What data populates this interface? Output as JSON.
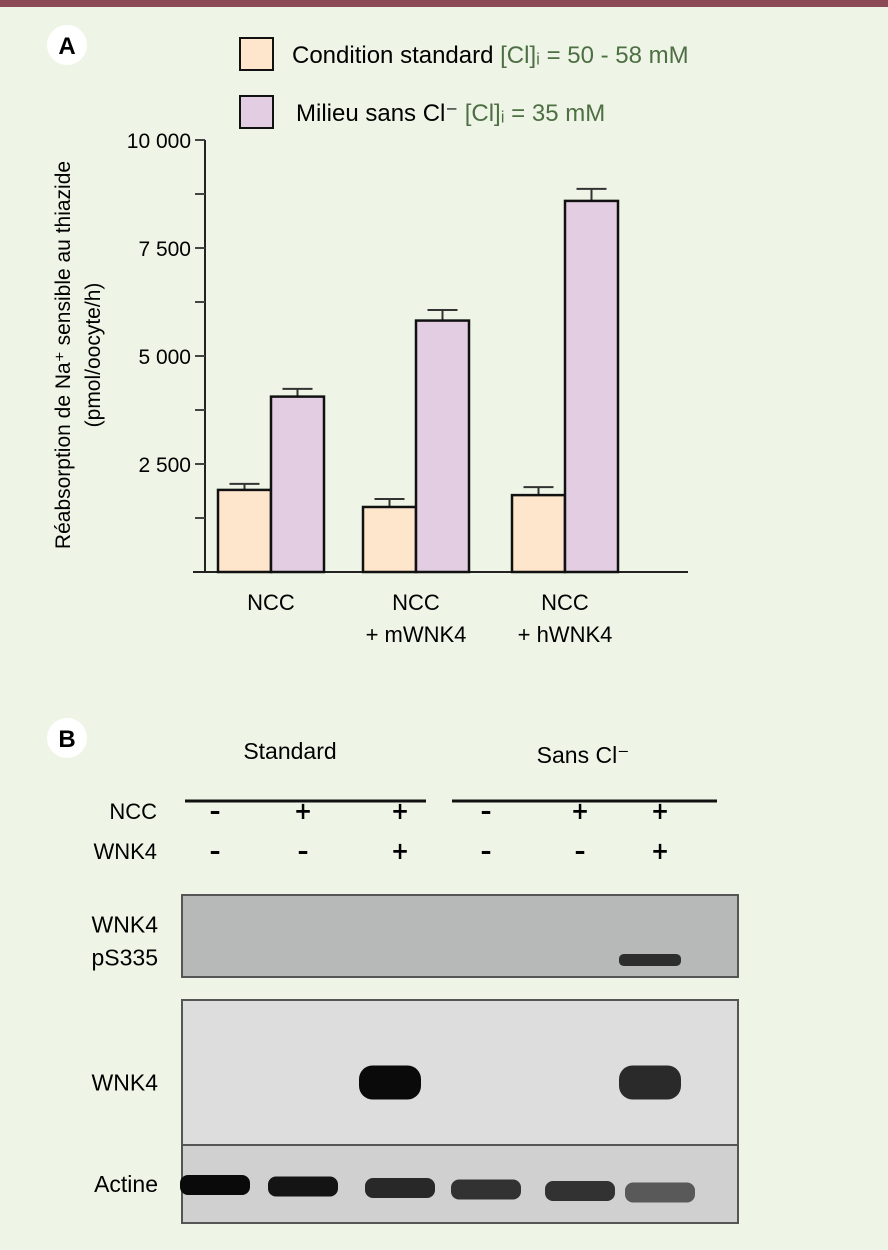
{
  "panel_a_label": "A",
  "panel_b_label": "B",
  "chart_data": {
    "type": "bar",
    "categories": [
      [
        "NCC"
      ],
      [
        "NCC",
        "+ mWNK4"
      ],
      [
        "NCC",
        "+ hWNK4"
      ]
    ],
    "ylabel": [
      "Réabsorption de Na⁺ sensible au thiazide",
      "(pmol/oocyte/h)"
    ],
    "ylim": [
      0,
      10000
    ],
    "yticks": [
      0,
      2500,
      5000,
      7500,
      10000
    ],
    "ytick_labels": [
      "",
      "2 500",
      "5 000",
      "7 500",
      "10 000"
    ],
    "minor_tick_step": 1250,
    "legend_position": "top",
    "series": [
      {
        "name": "Condition standard",
        "suffix": "[Cl]ᵢ = 50 - 58 mM",
        "color": "#fde6cc",
        "values": [
          1900,
          1505,
          1780
        ],
        "errors": [
          140,
          185,
          185
        ]
      },
      {
        "name": "Milieu sans Cl⁻",
        "suffix": "[Cl]ᵢ = 35 mM",
        "color": "#e2cde3",
        "values": [
          4060,
          5820,
          8590
        ],
        "errors": [
          180,
          245,
          280
        ]
      }
    ]
  },
  "blot": {
    "groups": [
      "Standard",
      "Sans Cl⁻"
    ],
    "rows": [
      {
        "label": "NCC",
        "values": [
          "–",
          "+",
          "+",
          "–",
          "+",
          "+"
        ]
      },
      {
        "label": "WNK4",
        "values": [
          "–",
          "–",
          "+",
          "–",
          "–",
          "+"
        ]
      }
    ],
    "panels": [
      {
        "label": [
          "WNK4",
          "pS335"
        ],
        "background": "#b7b9b8",
        "bands": [
          0,
          0,
          0,
          0,
          0,
          0.8
        ]
      },
      {
        "label": [
          "WNK4"
        ],
        "background": "#dcdddc",
        "bands": [
          0,
          0,
          1,
          0,
          0,
          0.85
        ]
      },
      {
        "label": [
          "Actine"
        ],
        "background": "#cfd0cf",
        "bands": [
          1,
          0.95,
          0.85,
          0.8,
          0.8,
          0.6
        ]
      }
    ]
  }
}
